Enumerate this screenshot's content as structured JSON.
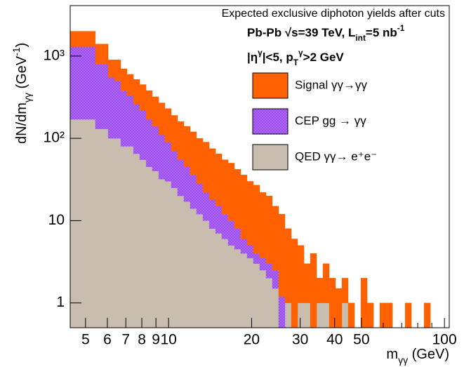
{
  "chart_data": {
    "type": "stacked-histogram",
    "title": "Expected exclusive diphoton yields after cuts",
    "annotations": [
      {
        "parts": [
          {
            "t": "Pb-Pb  √s=39 TeV, L"
          },
          {
            "t": "int",
            "s": "sub"
          },
          {
            "t": "=5 nb"
          },
          {
            "t": "-1",
            "s": "sup"
          }
        ]
      },
      {
        "parts": [
          {
            "t": "|η"
          },
          {
            "t": "γ",
            "s": "sup"
          },
          {
            "t": "|<5, p"
          },
          {
            "t": "T",
            "s": "sub"
          },
          {
            "t": "γ",
            "s": "sup"
          },
          {
            "t": ">2 GeV"
          }
        ]
      }
    ],
    "xlabel": {
      "parts": [
        {
          "t": "m"
        },
        {
          "t": "γγ",
          "s": "sub"
        },
        {
          "t": " (GeV)"
        }
      ]
    },
    "ylabel": {
      "parts": [
        {
          "t": "dN/dm"
        },
        {
          "t": "γγ",
          "s": "sub"
        },
        {
          "t": " (GeV"
        },
        {
          "t": "-1",
          "s": "sup"
        },
        {
          "t": ")"
        }
      ]
    },
    "xscale": "log",
    "yscale": "log",
    "xlim": [
      4.4,
      104.1
    ],
    "ylim": [
      0.5,
      4100
    ],
    "xticks": [
      5,
      6,
      7,
      8,
      9,
      10,
      20,
      30,
      40,
      50,
      100
    ],
    "xminorticks": [
      60,
      70,
      80,
      90
    ],
    "yticks": [
      1,
      10,
      {
        "value": 100,
        "label": "10²"
      },
      {
        "value": 1000,
        "label": "10³"
      }
    ],
    "legend": "top-right",
    "bins": [
      4.4,
      4.64,
      4.89,
      5.15,
      5.43,
      5.73,
      6.04,
      6.37,
      6.71,
      7.07,
      7.46,
      7.86,
      8.29,
      8.73,
      9.21,
      9.7,
      10.23,
      10.78,
      11.37,
      11.98,
      12.63,
      13.32,
      14.04,
      14.8,
      15.6,
      16.44,
      17.33,
      18.27,
      19.26,
      20.3,
      21.4,
      22.56,
      23.78,
      25.07,
      26.43,
      27.86,
      29.37,
      30.96,
      32.64,
      34.4,
      36.27,
      38.23,
      40.3,
      42.48,
      44.78,
      47.21,
      49.77,
      52.46,
      55.31,
      58.3,
      61.46,
      64.79,
      68.3,
      72.0,
      75.9,
      80.01,
      84.35,
      88.92,
      93.73,
      98.81,
      104.1
    ],
    "series": [
      {
        "name": "Signal γγ→γγ",
        "color": "#ff6100",
        "values": [
          700,
          700,
          700,
          700,
          600,
          600,
          350,
          400,
          320,
          270,
          260,
          230,
          210,
          180,
          160,
          140,
          120,
          105,
          95,
          84,
          72,
          68,
          57,
          50,
          43,
          40,
          34,
          30,
          25,
          23,
          18.5,
          17,
          12.5,
          10.8,
          7,
          6,
          4,
          2,
          4,
          1,
          2,
          2,
          1.5,
          1,
          1,
          0,
          2,
          1,
          0,
          1,
          1,
          0,
          0,
          1,
          0,
          0,
          1,
          0,
          0,
          0
        ]
      },
      {
        "name": "CEP gg → γγ",
        "color": "#b36bff",
        "values": [
          1130,
          1130,
          1130,
          1130,
          670,
          670,
          450,
          400,
          300,
          250,
          195,
          165,
          125,
          100,
          78,
          60,
          45,
          35,
          28,
          22,
          16,
          12,
          10,
          8,
          6,
          5,
          3.5,
          2,
          1.5,
          1,
          1,
          1,
          1,
          1.2,
          0,
          0,
          0,
          0,
          0,
          0,
          0,
          0,
          0,
          0,
          0,
          0,
          0,
          0,
          0,
          0,
          0,
          0,
          0,
          0,
          0,
          0,
          0,
          0,
          0,
          0
        ]
      },
      {
        "name": "QED γγ→ e⁺e⁻",
        "color": "#c9bdb0",
        "values": [
          170,
          170,
          170,
          170,
          130,
          130,
          100,
          100,
          80,
          80,
          65,
          55,
          45,
          40,
          32,
          30,
          25,
          20,
          17,
          14,
          12,
          10,
          8,
          7,
          6,
          5,
          4.5,
          4,
          3.5,
          3,
          2.5,
          2,
          1.5,
          0,
          1,
          0,
          1,
          1,
          0,
          1,
          1,
          0,
          0,
          1,
          0,
          0,
          0,
          0,
          0,
          0,
          0,
          0,
          0,
          0,
          0,
          0,
          0,
          0,
          0,
          0
        ]
      }
    ]
  }
}
